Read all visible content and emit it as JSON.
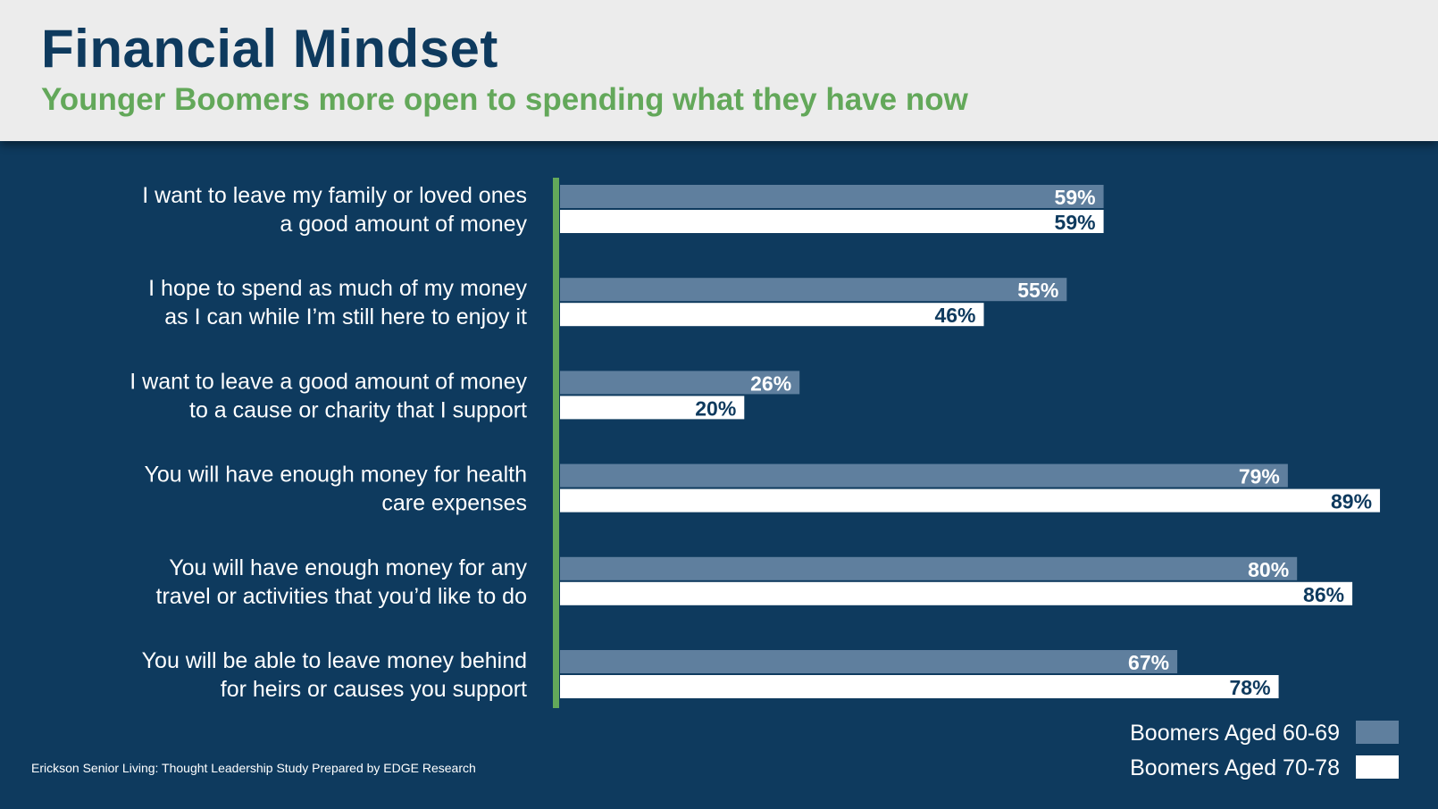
{
  "header": {
    "title": "Financial Mindset",
    "subtitle": "Younger Boomers more open to spending what they have now"
  },
  "source": "Erickson Senior Living: Thought Leadership Study Prepared by EDGE Research",
  "colors": {
    "background": "#0e3a5e",
    "header_bg": "#ececec",
    "title": "#0e3a5e",
    "subtitle": "#63a85a",
    "axis": "#63a85a",
    "series_60_69": "#5f7f9e",
    "series_70_78": "#ffffff"
  },
  "chart_data": {
    "type": "bar",
    "orientation": "horizontal",
    "categories": [
      [
        "I want to leave my family or loved ones",
        "a good amount of money"
      ],
      [
        "I hope to spend as much of my money",
        "as I can while I’m still here to enjoy it"
      ],
      [
        "I want to leave a good amount of money",
        "to a cause or charity that I support"
      ],
      [
        "You will have enough money for health",
        "care expenses"
      ],
      [
        "You will have enough money for any",
        "travel or activities that you’d like to do"
      ],
      [
        "You will be able to leave money behind",
        "for heirs or causes you support"
      ]
    ],
    "series": [
      {
        "name": "Boomers Aged 60-69",
        "values": [
          59,
          55,
          26,
          79,
          80,
          67
        ],
        "labels": [
          "59%",
          "55%",
          "26%",
          "79%",
          "80%",
          "67%"
        ]
      },
      {
        "name": "Boomers Aged 70-78",
        "values": [
          59,
          46,
          20,
          89,
          86,
          78
        ],
        "labels": [
          "59%",
          "46%",
          "20%",
          "89%",
          "86%",
          "78%"
        ]
      }
    ],
    "xlim": [
      0,
      100
    ],
    "grid": false,
    "legend": "bottom-right"
  }
}
